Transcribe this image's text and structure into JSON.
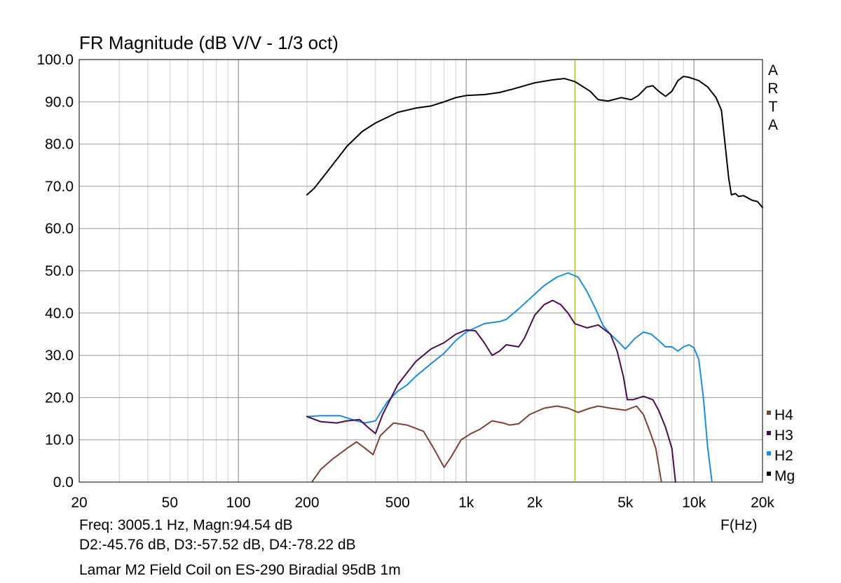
{
  "chart_data": {
    "type": "line",
    "title": "FR Magnitude (dB V/V - 1/3 oct)",
    "brand_text": "ARTA",
    "xlabel": "F(Hz)",
    "ylabel": "",
    "x_scale": "log",
    "xlim": [
      20,
      20000
    ],
    "ylim": [
      0,
      100
    ],
    "x_ticks": [
      20,
      50,
      100,
      200,
      500,
      1000,
      2000,
      5000,
      10000,
      20000
    ],
    "x_tick_labels": [
      "20",
      "50",
      "100",
      "200",
      "500",
      "1k",
      "2k",
      "5k",
      "10k",
      "20k"
    ],
    "y_ticks": [
      0,
      10,
      20,
      30,
      40,
      50,
      60,
      70,
      80,
      90,
      100
    ],
    "y_tick_labels": [
      "0.0",
      "10.0",
      "20.0",
      "30.0",
      "40.0",
      "50.0",
      "60.0",
      "70.0",
      "80.0",
      "90.0",
      "100.0"
    ],
    "grid": true,
    "legend_position": "right",
    "cursor_frequency": 3005.1,
    "cursor_color": "#b7b23a",
    "series": [
      {
        "name": "Mg",
        "color": "#000000",
        "points": [
          [
            200,
            68
          ],
          [
            215,
            69.5
          ],
          [
            250,
            74
          ],
          [
            300,
            79.5
          ],
          [
            350,
            83
          ],
          [
            400,
            85
          ],
          [
            500,
            87.5
          ],
          [
            600,
            88.5
          ],
          [
            700,
            89
          ],
          [
            800,
            90
          ],
          [
            900,
            91
          ],
          [
            1000,
            91.5
          ],
          [
            1200,
            91.7
          ],
          [
            1400,
            92.2
          ],
          [
            1600,
            93
          ],
          [
            1800,
            93.8
          ],
          [
            2000,
            94.5
          ],
          [
            2400,
            95.2
          ],
          [
            2700,
            95.5
          ],
          [
            3000,
            94.8
          ],
          [
            3500,
            92.5
          ],
          [
            3800,
            90.5
          ],
          [
            4200,
            90.2
          ],
          [
            4800,
            91
          ],
          [
            5300,
            90.5
          ],
          [
            5700,
            91.5
          ],
          [
            6200,
            93.5
          ],
          [
            6600,
            93.8
          ],
          [
            7000,
            92.5
          ],
          [
            7500,
            91.3
          ],
          [
            8000,
            92.5
          ],
          [
            8500,
            95
          ],
          [
            9000,
            96
          ],
          [
            9500,
            95.8
          ],
          [
            10500,
            95
          ],
          [
            11500,
            93.5
          ],
          [
            12500,
            91
          ],
          [
            13200,
            88
          ],
          [
            13700,
            80
          ],
          [
            14200,
            72
          ],
          [
            14600,
            68
          ],
          [
            15200,
            68.3
          ],
          [
            15700,
            67.6
          ],
          [
            16500,
            67.8
          ],
          [
            17200,
            67.3
          ],
          [
            18000,
            66.7
          ],
          [
            19000,
            66.4
          ],
          [
            20000,
            65
          ]
        ]
      },
      {
        "name": "H2",
        "color": "#1c8ce0",
        "points": [
          [
            200,
            15.5
          ],
          [
            230,
            15.7
          ],
          [
            280,
            15.7
          ],
          [
            330,
            14.5
          ],
          [
            360,
            14
          ],
          [
            400,
            14.5
          ],
          [
            450,
            19
          ],
          [
            500,
            21.5
          ],
          [
            550,
            23
          ],
          [
            600,
            25
          ],
          [
            700,
            28
          ],
          [
            800,
            30.5
          ],
          [
            900,
            33.5
          ],
          [
            1000,
            35.5
          ],
          [
            1200,
            37.5
          ],
          [
            1400,
            38
          ],
          [
            1500,
            38.5
          ],
          [
            1700,
            41
          ],
          [
            2000,
            44.5
          ],
          [
            2200,
            46.5
          ],
          [
            2500,
            48.5
          ],
          [
            2800,
            49.5
          ],
          [
            3100,
            48.5
          ],
          [
            3400,
            45
          ],
          [
            3700,
            41
          ],
          [
            4000,
            37
          ],
          [
            4300,
            35
          ],
          [
            4700,
            33
          ],
          [
            5000,
            31.5
          ],
          [
            5500,
            34
          ],
          [
            6000,
            35.5
          ],
          [
            6500,
            35
          ],
          [
            7000,
            33.5
          ],
          [
            7500,
            32
          ],
          [
            8000,
            32
          ],
          [
            8500,
            31
          ],
          [
            9000,
            32
          ],
          [
            9500,
            32.5
          ],
          [
            10000,
            31.8
          ],
          [
            10500,
            29
          ],
          [
            11000,
            20
          ],
          [
            11500,
            8
          ],
          [
            12000,
            0
          ]
        ]
      },
      {
        "name": "H3",
        "color": "#4b0c4e",
        "points": [
          [
            200,
            15.5
          ],
          [
            230,
            14.3
          ],
          [
            270,
            14
          ],
          [
            300,
            14.5
          ],
          [
            340,
            14.8
          ],
          [
            370,
            13
          ],
          [
            400,
            11.5
          ],
          [
            430,
            16
          ],
          [
            500,
            23
          ],
          [
            600,
            28.5
          ],
          [
            700,
            31.5
          ],
          [
            800,
            33
          ],
          [
            900,
            35
          ],
          [
            1000,
            36
          ],
          [
            1100,
            35.8
          ],
          [
            1200,
            33
          ],
          [
            1300,
            30
          ],
          [
            1400,
            31
          ],
          [
            1500,
            32.5
          ],
          [
            1700,
            32
          ],
          [
            1800,
            34
          ],
          [
            2000,
            39.5
          ],
          [
            2200,
            42
          ],
          [
            2400,
            43
          ],
          [
            2600,
            42
          ],
          [
            2800,
            40
          ],
          [
            3000,
            37.5
          ],
          [
            3400,
            36.5
          ],
          [
            3800,
            37.2
          ],
          [
            4300,
            35
          ],
          [
            4600,
            31
          ],
          [
            4900,
            25
          ],
          [
            5100,
            19.5
          ],
          [
            5400,
            19.5
          ],
          [
            6000,
            20.3
          ],
          [
            6600,
            19.5
          ],
          [
            7000,
            17
          ],
          [
            7500,
            13
          ],
          [
            8000,
            8
          ],
          [
            8300,
            0
          ]
        ]
      },
      {
        "name": "H4",
        "color": "#7b4236",
        "points": [
          [
            210,
            0
          ],
          [
            230,
            3
          ],
          [
            260,
            5.5
          ],
          [
            300,
            8
          ],
          [
            330,
            9.5
          ],
          [
            360,
            8
          ],
          [
            390,
            6.5
          ],
          [
            420,
            11
          ],
          [
            480,
            14
          ],
          [
            550,
            13.5
          ],
          [
            650,
            12
          ],
          [
            720,
            8
          ],
          [
            800,
            3.5
          ],
          [
            860,
            6
          ],
          [
            950,
            10
          ],
          [
            1050,
            11.5
          ],
          [
            1150,
            12.5
          ],
          [
            1300,
            14.5
          ],
          [
            1450,
            14
          ],
          [
            1550,
            13.5
          ],
          [
            1700,
            13.8
          ],
          [
            1900,
            16
          ],
          [
            2200,
            17.5
          ],
          [
            2500,
            18
          ],
          [
            2800,
            17.5
          ],
          [
            3100,
            16.5
          ],
          [
            3500,
            17.5
          ],
          [
            3800,
            18
          ],
          [
            4300,
            17.5
          ],
          [
            5000,
            17
          ],
          [
            5600,
            18
          ],
          [
            6000,
            16
          ],
          [
            6400,
            12
          ],
          [
            6800,
            8
          ],
          [
            7200,
            0
          ]
        ]
      }
    ]
  },
  "legend": [
    {
      "label": "H4",
      "color": "#7b4236"
    },
    {
      "label": "H3",
      "color": "#4b0c4e"
    },
    {
      "label": "H2",
      "color": "#1c8ce0"
    },
    {
      "label": "Mg",
      "color": "#000000"
    }
  ],
  "info": {
    "line1": "Freq: 3005.1 Hz, Magn:94.54 dB",
    "line2": "D2:-45.76 dB, D3:-57.52 dB, D4:-78.22 dB",
    "line3": "Lamar M2 Field Coil on ES-290 Biradial 95dB 1m"
  }
}
